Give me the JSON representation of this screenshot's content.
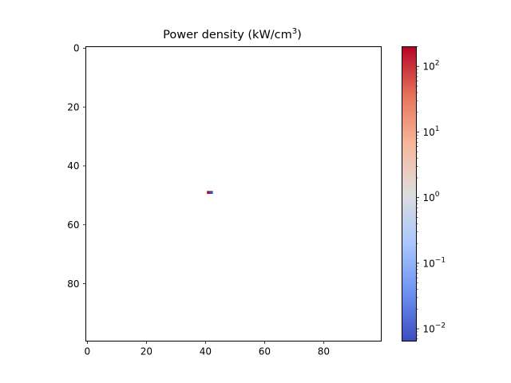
{
  "chart_data": {
    "type": "heatmap",
    "title": "Power density (kW/cm",
    "title_sup": "3",
    "title_close": ")",
    "xlabel": "",
    "ylabel": "",
    "grid_size": [
      100,
      100
    ],
    "xlim": [
      -0.5,
      99.5
    ],
    "ylim": [
      99.5,
      -0.5
    ],
    "y_inverted": true,
    "x_ticks": [
      0,
      20,
      40,
      60,
      80
    ],
    "x_tick_labels": [
      "0",
      "20",
      "40",
      "60",
      "80"
    ],
    "y_ticks": [
      0,
      20,
      40,
      60,
      80
    ],
    "y_tick_labels": [
      "0",
      "20",
      "40",
      "60",
      "80"
    ],
    "background": "#ffffff",
    "cells": [
      {
        "row": 49,
        "col": 41,
        "value": 200
      },
      {
        "row": 49,
        "col": 42,
        "value": 0.0065
      }
    ],
    "colorbar": {
      "colormap": "coolwarm",
      "scale": "log",
      "range": [
        0.0065,
        200
      ],
      "ticks": [
        0.01,
        0.1,
        1,
        10,
        100
      ],
      "tick_labels": [
        {
          "base": "10",
          "exp": "−2"
        },
        {
          "base": "10",
          "exp": "−1"
        },
        {
          "base": "10",
          "exp": "0"
        },
        {
          "base": "10",
          "exp": "1"
        },
        {
          "base": "10",
          "exp": "2"
        }
      ],
      "colors": [
        "#3b4cc0",
        "#6e92f2",
        "#aac7fd",
        "#dddddd",
        "#f7b89c",
        "#e7745b",
        "#b40426"
      ]
    }
  }
}
